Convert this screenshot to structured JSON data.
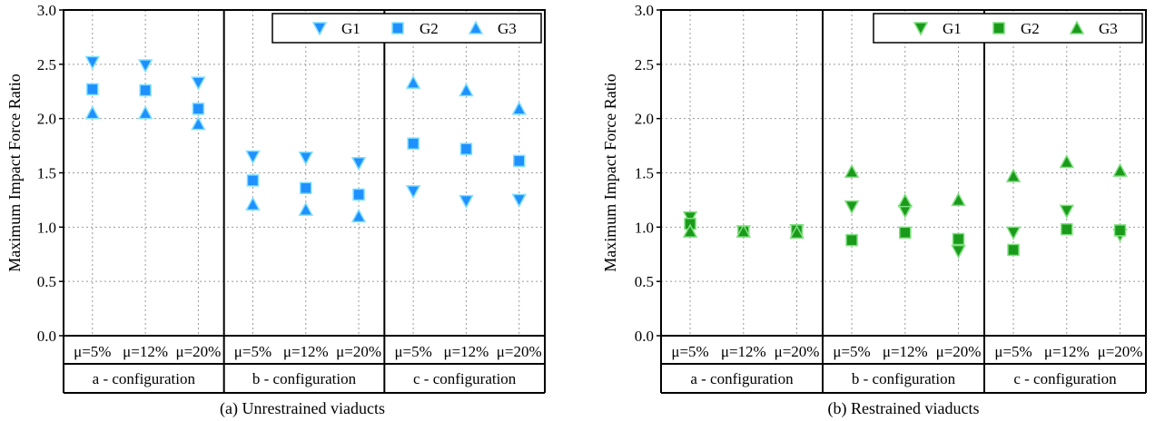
{
  "chart_data": [
    {
      "type": "scatter",
      "title": "(a) Unrestrained viaducts",
      "ylabel": "Maximum Impact Force Ratio",
      "ylim": [
        0,
        3
      ],
      "yticks": [
        "0.0",
        "0.5",
        "1.0",
        "1.5",
        "2.0",
        "2.5",
        "3.0"
      ],
      "yticks_values": [
        0,
        0.5,
        1,
        1.5,
        2,
        2.5,
        3
      ],
      "categories": [
        "μ=5%",
        "μ=12%",
        "μ=20%",
        "μ=5%",
        "μ=12%",
        "μ=20%",
        "μ=5%",
        "μ=12%",
        "μ=20%"
      ],
      "groups": [
        "a - configuration",
        "b -  configuration",
        "c - configuration"
      ],
      "grid": true,
      "legend_position": "top-right",
      "colors": {
        "fill": "#1e90ff",
        "edge": "#7fdfff"
      },
      "series": [
        {
          "name": "G1",
          "marker": "triangle-down",
          "values": [
            2.52,
            2.49,
            2.33,
            1.65,
            1.64,
            1.59,
            1.33,
            1.24,
            1.25
          ]
        },
        {
          "name": "G2",
          "marker": "square",
          "values": [
            2.27,
            2.26,
            2.09,
            1.43,
            1.36,
            1.3,
            1.77,
            1.72,
            1.61
          ]
        },
        {
          "name": "G3",
          "marker": "triangle-up",
          "values": [
            2.05,
            2.05,
            1.95,
            1.21,
            1.16,
            1.1,
            2.33,
            2.26,
            2.09
          ]
        }
      ]
    },
    {
      "type": "scatter",
      "title": "(b) Restrained viaducts",
      "ylabel": "Maximum Impact Force Ratio",
      "ylim": [
        0,
        3
      ],
      "yticks": [
        "0.0",
        "0.5",
        "1.0",
        "1.5",
        "2.0",
        "2.5",
        "3.0"
      ],
      "yticks_values": [
        0,
        0.5,
        1,
        1.5,
        2,
        2.5,
        3
      ],
      "categories": [
        "μ=5%",
        "μ=12%",
        "μ=20%",
        "μ=5%",
        "μ=12%",
        "μ=20%",
        "μ=5%",
        "μ=12%",
        "μ=20%"
      ],
      "groups": [
        "a - configuration",
        "b -  configuration",
        "c - configuration"
      ],
      "grid": true,
      "legend_position": "top-right",
      "colors": {
        "fill": "#1a9a1a",
        "edge": "#7ee07e"
      },
      "series": [
        {
          "name": "G1",
          "marker": "triangle-down",
          "values": [
            1.09,
            0.96,
            0.97,
            1.19,
            1.15,
            0.78,
            0.95,
            1.15,
            0.93
          ]
        },
        {
          "name": "G2",
          "marker": "square",
          "values": [
            1.03,
            0.96,
            0.97,
            0.88,
            0.95,
            0.89,
            0.79,
            0.98,
            0.97
          ]
        },
        {
          "name": "G3",
          "marker": "triangle-up",
          "values": [
            0.96,
            0.96,
            0.95,
            1.51,
            1.24,
            1.25,
            1.47,
            1.6,
            1.52
          ]
        }
      ]
    }
  ]
}
